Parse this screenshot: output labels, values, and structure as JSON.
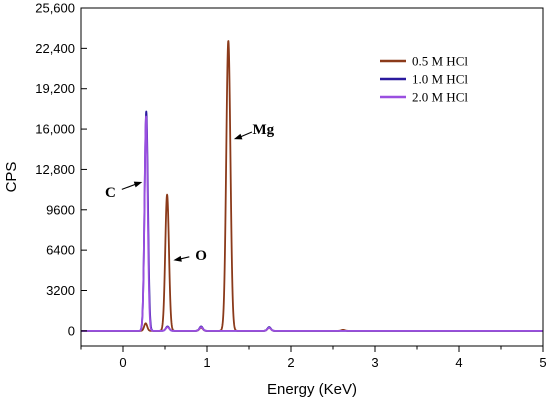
{
  "chart_data": {
    "type": "line",
    "title": "",
    "xlabel": "Energy (KeV)",
    "ylabel": "CPS",
    "xlim": [
      -0.5,
      5
    ],
    "ylim": [
      -1200,
      25600
    ],
    "x_ticks": [
      0,
      1,
      2,
      3,
      4,
      5
    ],
    "x_tick_labels": [
      "0",
      "1",
      "2",
      "3",
      "4",
      "5"
    ],
    "y_ticks": [
      0,
      3200,
      6400,
      9600,
      12800,
      16000,
      19200,
      22400,
      25600
    ],
    "y_tick_labels": [
      "0",
      "3200",
      "6400",
      "9600",
      "12,800",
      "16,000",
      "19,200",
      "22,400",
      "25,600"
    ],
    "legend_position": "top-right",
    "grid": false,
    "series": [
      {
        "name": "0.5 M HCl",
        "color": "#8b3a1a",
        "peaks": [
          [
            0.27,
            600,
            0.018
          ],
          [
            0.525,
            10800,
            0.022
          ],
          [
            0.93,
            250,
            0.02
          ],
          [
            1.254,
            23000,
            0.025
          ],
          [
            1.74,
            250,
            0.02
          ],
          [
            2.62,
            80,
            0.02
          ]
        ]
      },
      {
        "name": "1.0 M HCl",
        "color": "#2a1a9e",
        "peaks": [
          [
            0.277,
            17400,
            0.02
          ],
          [
            0.53,
            350,
            0.02
          ],
          [
            0.93,
            350,
            0.02
          ],
          [
            1.74,
            300,
            0.02
          ]
        ]
      },
      {
        "name": "2.0 M HCl",
        "color": "#9a4fe0",
        "peaks": [
          [
            0.275,
            17000,
            0.019
          ],
          [
            0.53,
            300,
            0.02
          ],
          [
            0.93,
            300,
            0.02
          ],
          [
            1.74,
            250,
            0.02
          ]
        ]
      }
    ],
    "annotations": [
      {
        "text": "C",
        "x": -0.15,
        "y": 11000,
        "arrow_to": [
          0.23,
          11800
        ]
      },
      {
        "text": "O",
        "x": 0.93,
        "y": 6000,
        "arrow_to": [
          0.6,
          5600
        ]
      },
      {
        "text": "Mg",
        "x": 1.67,
        "y": 16000,
        "arrow_to": [
          1.32,
          15200
        ]
      }
    ]
  }
}
